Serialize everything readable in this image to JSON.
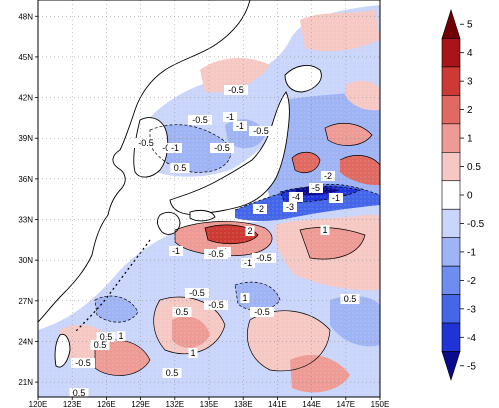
{
  "map": {
    "lat_labels": [
      "48N",
      "45N",
      "42N",
      "39N",
      "36N",
      "33N",
      "30N",
      "27N",
      "24N",
      "21N"
    ],
    "lon_labels": [
      "120E",
      "123E",
      "126E",
      "129E",
      "132E",
      "135E",
      "138E",
      "141E",
      "144E",
      "147E",
      "150E"
    ],
    "colors": {
      "neg5": "#0a0a8c",
      "neg4": "#1f33d6",
      "neg3": "#4466e8",
      "neg2": "#6f8cf0",
      "neg1": "#9fb4f5",
      "neg05": "#c9d5fa",
      "zero": "#ffffff",
      "pos05": "#f6c8c4",
      "pos1": "#ee9b95",
      "pos2": "#e06a62",
      "pos3": "#cc3a33",
      "pos4": "#a8141a",
      "pos5": "#6e0006",
      "coast": "#000000"
    },
    "contour_labels": [
      "-0.5",
      "-1",
      "-0.5",
      "-0.5",
      "-1",
      "-0.5",
      "0.5",
      "-0.5",
      "-1",
      "-0.5",
      "-2",
      "-4",
      "-5",
      "-3",
      "-2",
      "-1",
      "2",
      "1",
      "-1",
      "-1",
      "-0.5",
      "-0.5",
      "0",
      "-0.5",
      "0.5",
      "1",
      "0.5",
      "1",
      "-0.5",
      "-0.5",
      "0.5",
      "1",
      "0.5",
      "-0.5",
      "0.5",
      "-1",
      "0.5"
    ]
  },
  "colorbar": {
    "labels": [
      "5",
      "4",
      "3",
      "2",
      "1",
      "0.5",
      "0",
      "-0.5",
      "-1",
      "-2",
      "-3",
      "-4",
      "-5"
    ]
  }
}
